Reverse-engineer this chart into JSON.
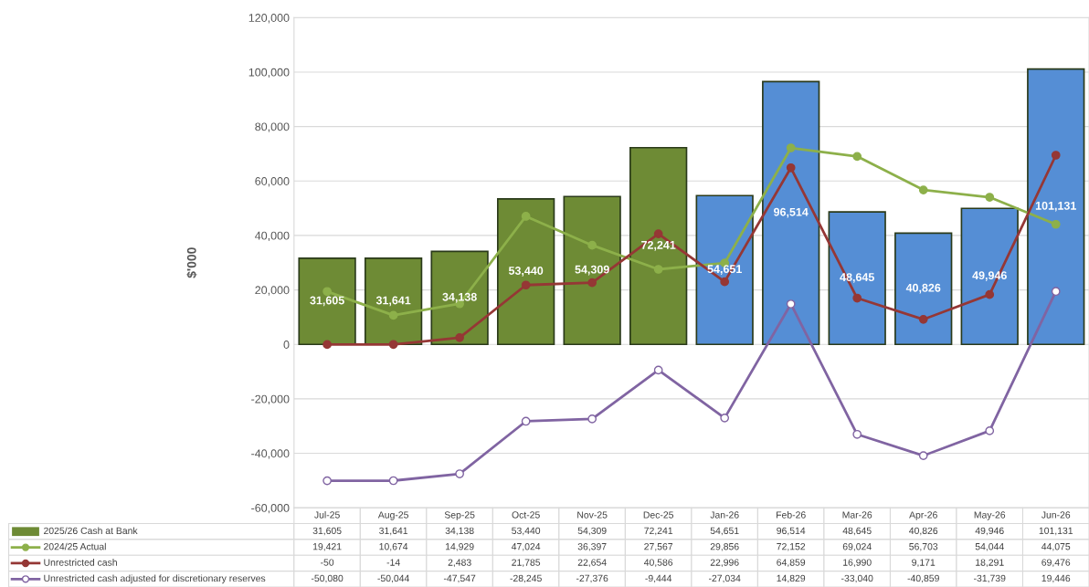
{
  "chart_data": {
    "type": "bar",
    "ylabel": "$'000",
    "categories": [
      "Jul-25",
      "Aug-25",
      "Sep-25",
      "Oct-25",
      "Nov-25",
      "Dec-25",
      "Jan-26",
      "Feb-26",
      "Mar-26",
      "Apr-26",
      "May-26",
      "Jun-26"
    ],
    "ylim": [
      -60000,
      120000
    ],
    "yticks": [
      {
        "value": -60000,
        "label": "-60,000"
      },
      {
        "value": -40000,
        "label": "-40,000"
      },
      {
        "value": -20000,
        "label": "-20,000"
      },
      {
        "value": 0,
        "label": "0"
      },
      {
        "value": 20000,
        "label": "20,000"
      },
      {
        "value": 40000,
        "label": "40,000"
      },
      {
        "value": 60000,
        "label": "60,000"
      },
      {
        "value": 80000,
        "label": "80,000"
      },
      {
        "value": 100000,
        "label": "100,000"
      },
      {
        "value": 120000,
        "label": "120,000"
      }
    ],
    "grid": "y",
    "legend": "bottom",
    "marker": "circle",
    "line_style": "solid",
    "series": [
      {
        "name": "2025/26 Cash at Bank",
        "color": "#6e8b35",
        "colors": [
          "#6e8b35",
          "#6e8b35",
          "#6e8b35",
          "#6e8b35",
          "#6e8b35",
          "#6e8b35",
          "#558ed5",
          "#558ed5",
          "#558ed5",
          "#558ed5",
          "#558ed5",
          "#558ed5"
        ],
        "values": [
          31605,
          31641,
          34138,
          53440,
          54309,
          72241,
          54651,
          96514,
          48645,
          40826,
          49946,
          101131
        ],
        "value_labels": [
          "31,605",
          "31,641",
          "34,138",
          "53,440",
          "54,309",
          "72,241",
          "54,651",
          "96,514",
          "48,645",
          "40,826",
          "49,946",
          "101,131"
        ]
      },
      {
        "name": "2024/25 Actual",
        "type": "line",
        "color": "#8db04a",
        "values": [
          19421,
          10674,
          14929,
          47024,
          36397,
          27567,
          29856,
          72152,
          69024,
          56703,
          54044,
          44075
        ],
        "value_labels": [
          "19,421",
          "10,674",
          "14,929",
          "47,024",
          "36,397",
          "27,567",
          "29,856",
          "72,152",
          "69,024",
          "56,703",
          "54,044",
          "44,075"
        ]
      },
      {
        "name": "Unrestricted cash",
        "type": "line",
        "color": "#953735",
        "values": [
          -50,
          -14,
          2483,
          21785,
          22654,
          40586,
          22996,
          64859,
          16990,
          9171,
          18291,
          69476
        ],
        "value_labels": [
          "-50",
          "-14",
          "2,483",
          "21,785",
          "22,654",
          "40,586",
          "22,996",
          "64,859",
          "16,990",
          "9,171",
          "18,291",
          "69,476"
        ]
      },
      {
        "name": "Unrestricted cash adjusted for discretionary reserves",
        "type": "line",
        "color": "#8064a2",
        "values": [
          -50080,
          -50044,
          -47547,
          -28245,
          -27376,
          -9444,
          -27034,
          14829,
          -33040,
          -40859,
          -31739,
          19446
        ],
        "value_labels": [
          "-50,080",
          "-50,044",
          "-47,547",
          "-28,245",
          "-27,376",
          "-9,444",
          "-27,034",
          "14,829",
          "-33,040",
          "-40,859",
          "-31,739",
          "19,446"
        ]
      }
    ]
  }
}
